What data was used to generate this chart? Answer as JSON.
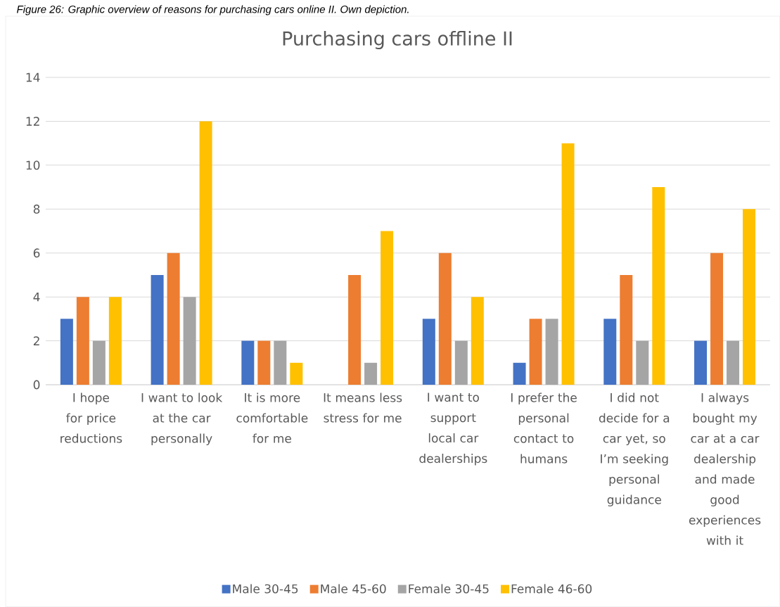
{
  "chart_data": {
    "type": "bar",
    "title": "Purchasing cars offline II",
    "annotations": [
      "Figure 26: Graphic overview of reasons for purchasing cars online II. Own depiction."
    ],
    "categories": [
      "I hope for price reductions",
      "I want to look at the car personally",
      "It is more comfortable for me",
      "It means less stress for me",
      "I want to support local car dealerships",
      "I prefer the personal contact to humans",
      "I did not decide for a car yet, so I’m seeking personal guidance",
      "I always bought my car at a car dealership and made good experiences with it"
    ],
    "series": [
      {
        "name": "Male 30-45",
        "color": "#4472c4",
        "values": [
          3,
          5,
          2,
          0,
          3,
          1,
          3,
          2
        ]
      },
      {
        "name": "Male 45-60",
        "color": "#ed7d31",
        "values": [
          4,
          6,
          2,
          5,
          6,
          3,
          5,
          6
        ]
      },
      {
        "name": "Female 30-45",
        "color": "#a5a5a5",
        "values": [
          2,
          4,
          2,
          1,
          2,
          3,
          2,
          2
        ]
      },
      {
        "name": "Female 46-60",
        "color": "#ffc000",
        "values": [
          4,
          12,
          1,
          7,
          4,
          11,
          9,
          8
        ]
      }
    ],
    "ylim": [
      0,
      14
    ],
    "yticks": [
      0,
      2,
      4,
      6,
      8,
      10,
      12,
      14
    ],
    "grid": "y",
    "legend": "bottom"
  }
}
